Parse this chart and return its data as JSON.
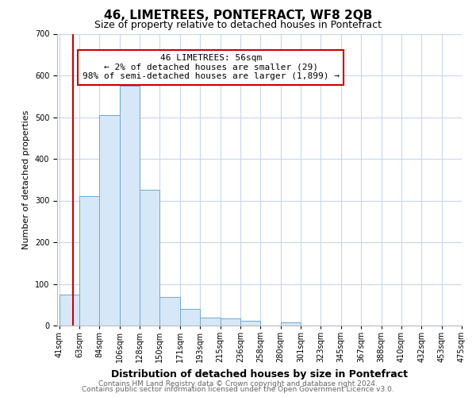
{
  "title": "46, LIMETREES, PONTEFRACT, WF8 2QB",
  "subtitle": "Size of property relative to detached houses in Pontefract",
  "xlabel": "Distribution of detached houses by size in Pontefract",
  "ylabel": "Number of detached properties",
  "bar_labels": [
    "41sqm",
    "63sqm",
    "84sqm",
    "106sqm",
    "128sqm",
    "150sqm",
    "171sqm",
    "193sqm",
    "215sqm",
    "236sqm",
    "258sqm",
    "280sqm",
    "301sqm",
    "323sqm",
    "345sqm",
    "367sqm",
    "388sqm",
    "410sqm",
    "432sqm",
    "453sqm",
    "475sqm"
  ],
  "bar_values": [
    75,
    310,
    505,
    575,
    325,
    68,
    40,
    20,
    18,
    12,
    0,
    8,
    0,
    0,
    0,
    0,
    0,
    0,
    0,
    0
  ],
  "bar_color": "#d6e8f7",
  "bar_edge_color": "#6fa8d4",
  "ylim": [
    0,
    700
  ],
  "yticks": [
    0,
    100,
    200,
    300,
    400,
    500,
    600,
    700
  ],
  "annotation_line1": "46 LIMETREES: 56sqm",
  "annotation_line2": "← 2% of detached houses are smaller (29)",
  "annotation_line3": "98% of semi-detached houses are larger (1,899) →",
  "annotation_box_color": "#ffffff",
  "annotation_box_edge_color": "#cc0000",
  "vline_color": "#cc0000",
  "footer_line1": "Contains HM Land Registry data © Crown copyright and database right 2024.",
  "footer_line2": "Contains public sector information licensed under the Open Government Licence v3.0.",
  "background_color": "#ffffff",
  "grid_color": "#c5d8ed",
  "title_fontsize": 11,
  "subtitle_fontsize": 9,
  "xlabel_fontsize": 9,
  "ylabel_fontsize": 8,
  "tick_fontsize": 7,
  "annotation_fontsize": 8,
  "footer_fontsize": 6.5
}
